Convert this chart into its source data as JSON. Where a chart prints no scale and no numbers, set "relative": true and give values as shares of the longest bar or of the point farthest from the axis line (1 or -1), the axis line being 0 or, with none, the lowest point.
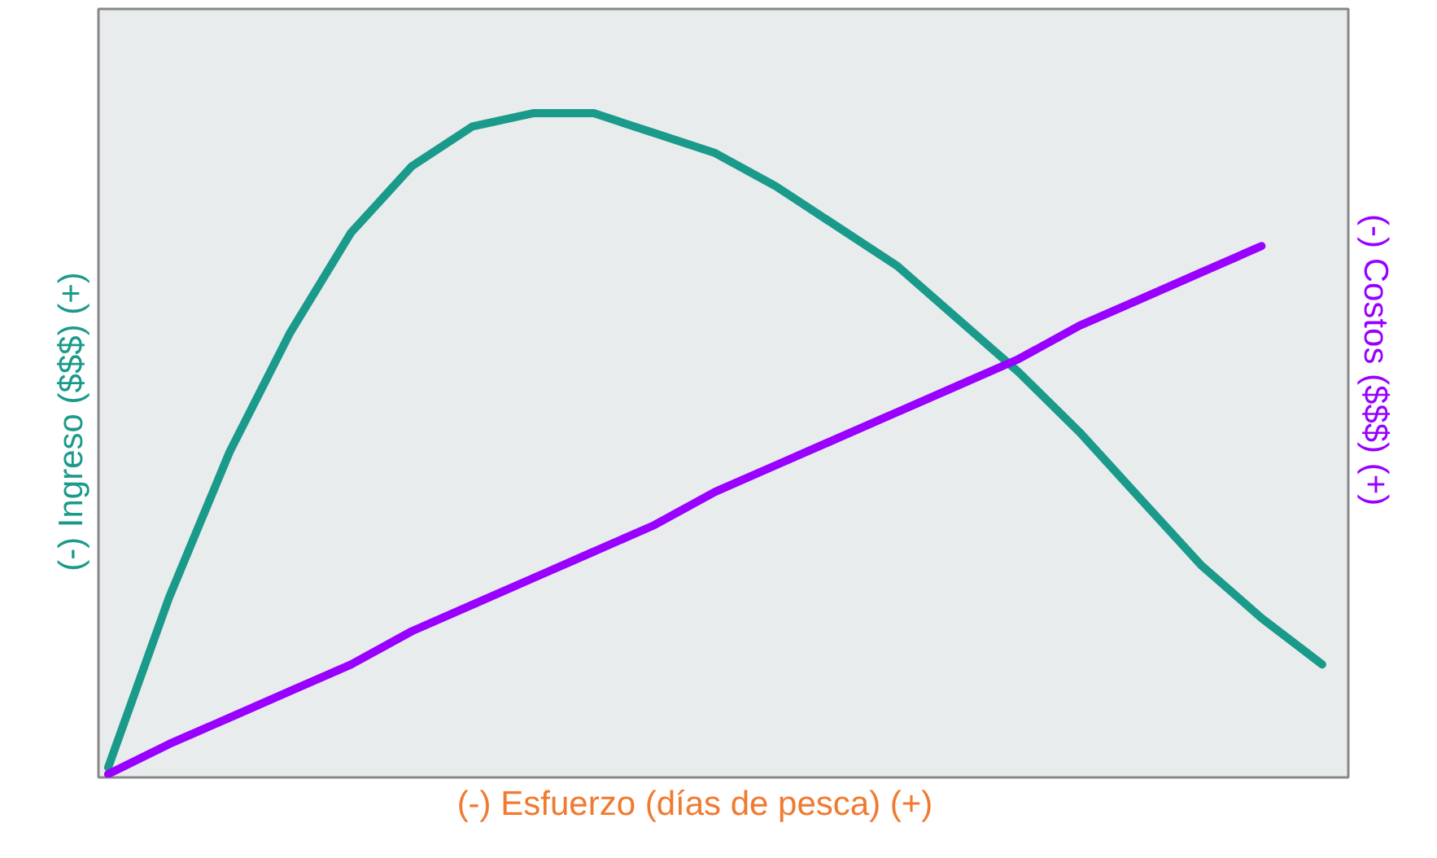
{
  "chart_data": {
    "type": "line",
    "relative": true,
    "xlabel": "(-)    Esfuerzo (días de pesca)    (+)",
    "ylabel": "(-)    Ingreso ($$$)    (+)",
    "y2label": "(-)    Costos  ($$$)    (+)",
    "categories": [
      null,
      null,
      null,
      null,
      null,
      null,
      null,
      null,
      null,
      null,
      null,
      null,
      null,
      null,
      null,
      null,
      null,
      null,
      null,
      null,
      null
    ],
    "series": [
      {
        "color": "#1a9a8a",
        "values": [
          0.015,
          0.27,
          0.49,
          0.67,
          0.82,
          0.92,
          0.98,
          1.0,
          1.0,
          0.97,
          0.94,
          0.89,
          0.83,
          0.77,
          0.69,
          0.61,
          0.52,
          0.42,
          0.32,
          0.24,
          0.17
        ]
      },
      {
        "color": "#9900ff",
        "values": [
          0.005,
          0.05,
          0.09,
          0.13,
          0.17,
          0.22,
          0.26,
          0.3,
          0.34,
          0.38,
          0.43,
          0.47,
          0.51,
          0.55,
          0.59,
          0.63,
          0.68,
          0.72,
          0.76,
          0.8,
          null
        ]
      }
    ],
    "tick_labels": false
  }
}
